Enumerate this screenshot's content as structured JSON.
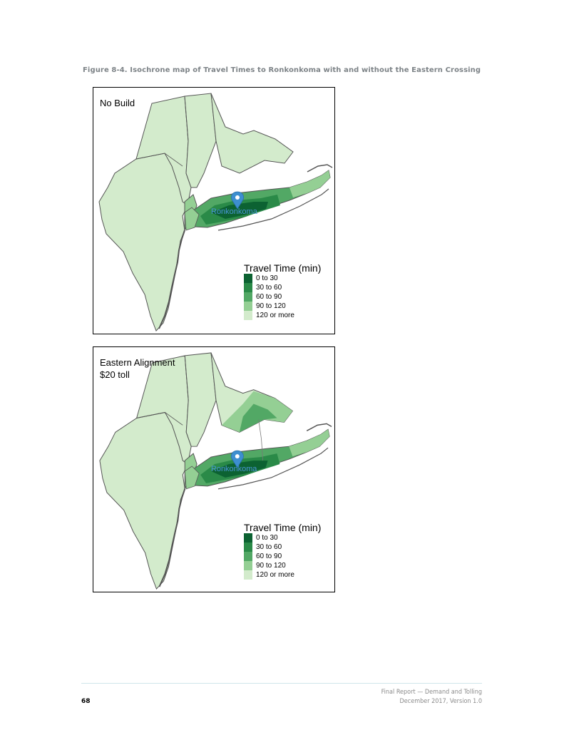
{
  "figure": {
    "caption": "Figure 8-4.   Isochrone map of Travel Times to Ronkonkoma with and without the Eastern Crossing"
  },
  "maps": [
    {
      "title": "No Build",
      "marker_label": "Ronkonkoma",
      "legend_title": "Travel Time (min)"
    },
    {
      "title": "Eastern Alignment\n$20 toll",
      "marker_label": "Ronkonkoma",
      "legend_title": "Travel Time (min)"
    }
  ],
  "legend": [
    {
      "label": "0 to 30",
      "color": "#0c6232"
    },
    {
      "label": "30 to 60",
      "color": "#2a8a48"
    },
    {
      "label": "60 to 90",
      "color": "#52a865"
    },
    {
      "label": "90 to 120",
      "color": "#94cf94"
    },
    {
      "label": "120 or more",
      "color": "#d3ebcc"
    }
  ],
  "colors": {
    "land_base": "#d3ebcc",
    "boundary": "#555555",
    "marker": "#3d8fd0"
  },
  "footer": {
    "page_number": "68",
    "report_title": "Final Report — Demand and Tolling",
    "report_date": "December 2017, Version 1.0"
  }
}
